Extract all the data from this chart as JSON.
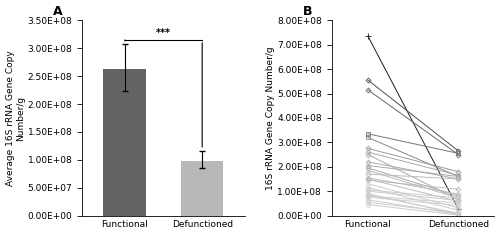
{
  "panel_A": {
    "categories": [
      "Functional",
      "Defunctioned"
    ],
    "bar_values": [
      262000000.0,
      98000000.0
    ],
    "bar_colors": [
      "#636363",
      "#b8b8b8"
    ],
    "error_plus": [
      45000000.0,
      18000000.0
    ],
    "error_minus": [
      38000000.0,
      12000000.0
    ],
    "ylim": [
      0,
      350000000.0
    ],
    "yticks": [
      0,
      50000000.0,
      100000000.0,
      150000000.0,
      200000000.0,
      250000000.0,
      300000000.0,
      350000000.0
    ],
    "ylabel": "Average 16S rRNA Gene Copy\nNumber/g",
    "sig_label": "***",
    "panel_label": "A"
  },
  "panel_B": {
    "functional": [
      735000000.0,
      555000000.0,
      515000000.0,
      335000000.0,
      320000000.0,
      275000000.0,
      260000000.0,
      250000000.0,
      220000000.0,
      205000000.0,
      195000000.0,
      185000000.0,
      170000000.0,
      155000000.0,
      150000000.0,
      145000000.0,
      130000000.0,
      115000000.0,
      105000000.0,
      100000000.0,
      90000000.0,
      85000000.0,
      80000000.0,
      75000000.0,
      65000000.0,
      55000000.0,
      45000000.0
    ],
    "defunctioned": [
      28000000.0,
      265000000.0,
      250000000.0,
      255000000.0,
      160000000.0,
      180000000.0,
      165000000.0,
      65000000.0,
      150000000.0,
      160000000.0,
      80000000.0,
      72000000.0,
      150000000.0,
      88000000.0,
      58000000.0,
      108000000.0,
      32000000.0,
      22000000.0,
      72000000.0,
      62000000.0,
      5000000.0,
      10000000.0,
      52000000.0,
      42000000.0,
      5000000.0,
      10000000.0,
      2000000.0
    ],
    "ylim": [
      0,
      800000000.0
    ],
    "yticks": [
      0,
      100000000.0,
      200000000.0,
      300000000.0,
      400000000.0,
      500000000.0,
      600000000.0,
      700000000.0,
      800000000.0
    ],
    "ylabel": "16S rRNA Gene Copy Number/g",
    "panel_label": "B",
    "line_colors": [
      "#1a1a1a",
      "#4d4d4d",
      "#666666",
      "#777777",
      "#888888",
      "#999999",
      "#aaaaaa",
      "#aaaaaa",
      "#aaaaaa",
      "#aaaaaa",
      "#aaaaaa",
      "#bbbbbb",
      "#bbbbbb",
      "#bbbbbb",
      "#bbbbbb",
      "#bbbbbb",
      "#cccccc",
      "#cccccc",
      "#cccccc",
      "#cccccc",
      "#cccccc",
      "#cccccc",
      "#cccccc",
      "#cccccc",
      "#cccccc",
      "#cccccc",
      "#cccccc"
    ],
    "markers": [
      "+",
      "D",
      "D",
      "s",
      "s",
      "D",
      "D",
      "D",
      "D",
      "D",
      "D",
      "x",
      "D",
      "D",
      "D",
      "D",
      "D",
      "D",
      "D",
      "D",
      "D",
      "D",
      "D",
      "D",
      "D",
      "D",
      "D"
    ]
  },
  "background_color": "#ffffff",
  "font_size": 6.5
}
